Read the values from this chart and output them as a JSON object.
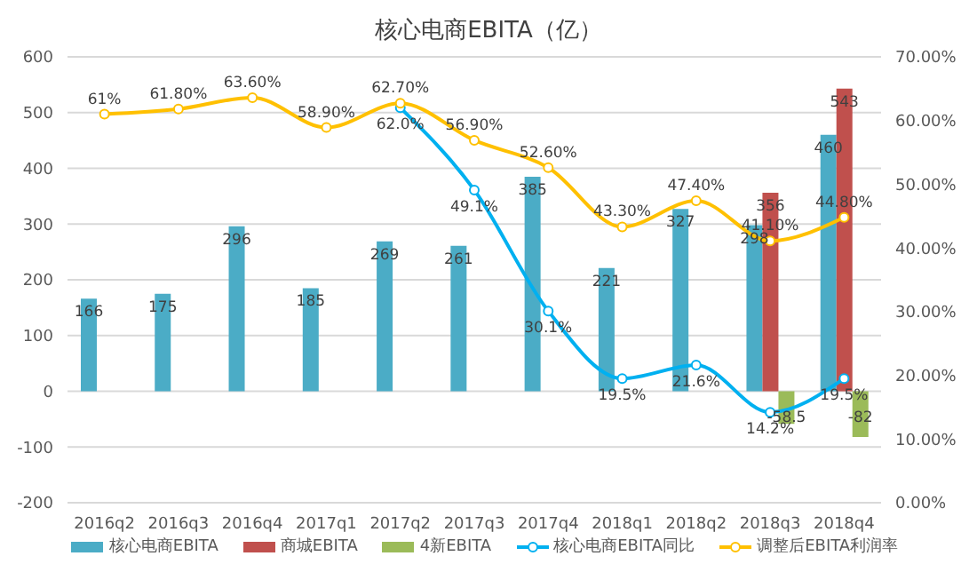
{
  "chart_data": {
    "type": "bar",
    "title": "核心电商EBITA（亿）",
    "categories": [
      "2016q2",
      "2016q3",
      "2016q4",
      "2017q1",
      "2017q2",
      "2017q3",
      "2017q4",
      "2018q1",
      "2018q2",
      "2018q3",
      "2018q4"
    ],
    "series": [
      {
        "name": "核心电商EBITA",
        "color": "#4bacc6",
        "values": [
          166,
          175,
          296,
          185,
          269,
          261,
          385,
          221,
          327,
          298,
          460
        ],
        "value_labels": [
          "166",
          "175",
          "296",
          "185",
          "269",
          "261",
          "385",
          "221",
          "327",
          "298",
          "460"
        ]
      },
      {
        "name": "商城EBITA",
        "color": "#c0504d",
        "values": [
          null,
          null,
          null,
          null,
          null,
          null,
          null,
          null,
          null,
          356,
          543
        ],
        "value_labels": [
          null,
          null,
          null,
          null,
          null,
          null,
          null,
          null,
          null,
          "356",
          "543"
        ]
      },
      {
        "name": "4新EBITA",
        "color": "#9bbb59",
        "values": [
          null,
          null,
          null,
          null,
          null,
          null,
          null,
          null,
          null,
          -58.5,
          -82
        ],
        "value_labels": [
          null,
          null,
          null,
          null,
          null,
          null,
          null,
          null,
          null,
          "-58.5",
          "-82"
        ]
      },
      {
        "name": "核心电商EBITA同比",
        "type": "line",
        "axis": "y2",
        "color": "#00b0f0",
        "values": [
          null,
          null,
          null,
          null,
          62.0,
          49.1,
          30.1,
          19.5,
          21.6,
          14.2,
          19.5
        ],
        "value_labels": [
          null,
          null,
          null,
          null,
          "62.0%",
          "49.1%",
          "30.1%",
          "19.5%",
          "21.6%",
          "14.2%",
          "19.5%"
        ]
      },
      {
        "name": "调整后EBITA利润率",
        "type": "line",
        "axis": "y2",
        "color": "#ffc000",
        "values": [
          61,
          61.8,
          63.6,
          58.9,
          62.7,
          56.9,
          52.6,
          43.3,
          47.4,
          41.1,
          44.8
        ],
        "value_labels": [
          "61%",
          "61.80%",
          "63.60%",
          "58.90%",
          "62.70%",
          "56.90%",
          "52.60%",
          "43.30%",
          "47.40%",
          "41.10%",
          "44.80%"
        ]
      }
    ],
    "ylim": [
      -200,
      600
    ],
    "yticks": [
      -200,
      -100,
      0,
      100,
      200,
      300,
      400,
      500,
      600
    ],
    "y2lim": [
      0,
      70
    ],
    "y2ticks": [
      {
        "value": 0,
        "label": "0.00%"
      },
      {
        "value": 10,
        "label": "10.00%"
      },
      {
        "value": 20,
        "label": "20.00%"
      },
      {
        "value": 30,
        "label": "30.00%"
      },
      {
        "value": 40,
        "label": "40.00%"
      },
      {
        "value": 50,
        "label": "50.00%"
      },
      {
        "value": 60,
        "label": "60.00%"
      },
      {
        "value": 70,
        "label": "70.00%"
      }
    ],
    "grid": "y",
    "legend": "bottom",
    "marker": "circle",
    "line_style": "solid"
  }
}
